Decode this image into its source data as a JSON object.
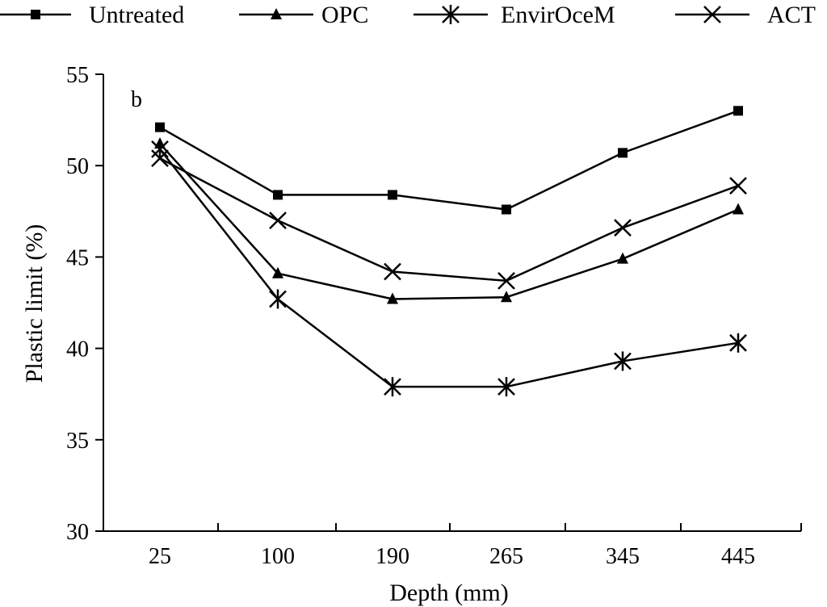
{
  "chart_data": {
    "type": "line",
    "title": "",
    "panel_label": "b",
    "xlabel": "Depth (mm)",
    "ylabel": "Plastic limit (%)",
    "categories": [
      "25",
      "100",
      "190",
      "265",
      "345",
      "445"
    ],
    "ylim": [
      30,
      55
    ],
    "yticks": [
      30,
      35,
      40,
      45,
      50,
      55
    ],
    "grid": false,
    "legend_position": "top",
    "series": [
      {
        "name": "Untreated",
        "marker": "square",
        "values": [
          52.1,
          48.4,
          48.4,
          47.6,
          50.7,
          53.0
        ]
      },
      {
        "name": "OPC",
        "marker": "triangle",
        "values": [
          51.2,
          44.1,
          42.7,
          42.8,
          44.9,
          47.6
        ]
      },
      {
        "name": "EnvirOceM",
        "marker": "asterisk",
        "values": [
          50.9,
          42.7,
          37.9,
          37.9,
          39.3,
          40.3
        ]
      },
      {
        "name": "ACT",
        "marker": "cross",
        "values": [
          50.4,
          47.0,
          44.2,
          43.7,
          46.6,
          48.9
        ]
      }
    ]
  },
  "colors": {
    "line": "#000000",
    "background": "#ffffff"
  }
}
